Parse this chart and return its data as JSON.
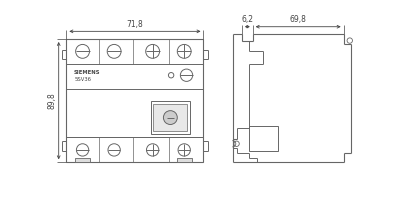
{
  "bg_color": "#ffffff",
  "line_color": "#666666",
  "dim_color": "#444444",
  "fig_width": 4.0,
  "fig_height": 1.97,
  "dpi": 100,
  "dim_718_text": "71,8",
  "dim_62_text": "6,2",
  "dim_698_text": "69,8",
  "dim_898_text": "89,8",
  "label_siemens": "SIEMENS",
  "label_model": "5SV36"
}
